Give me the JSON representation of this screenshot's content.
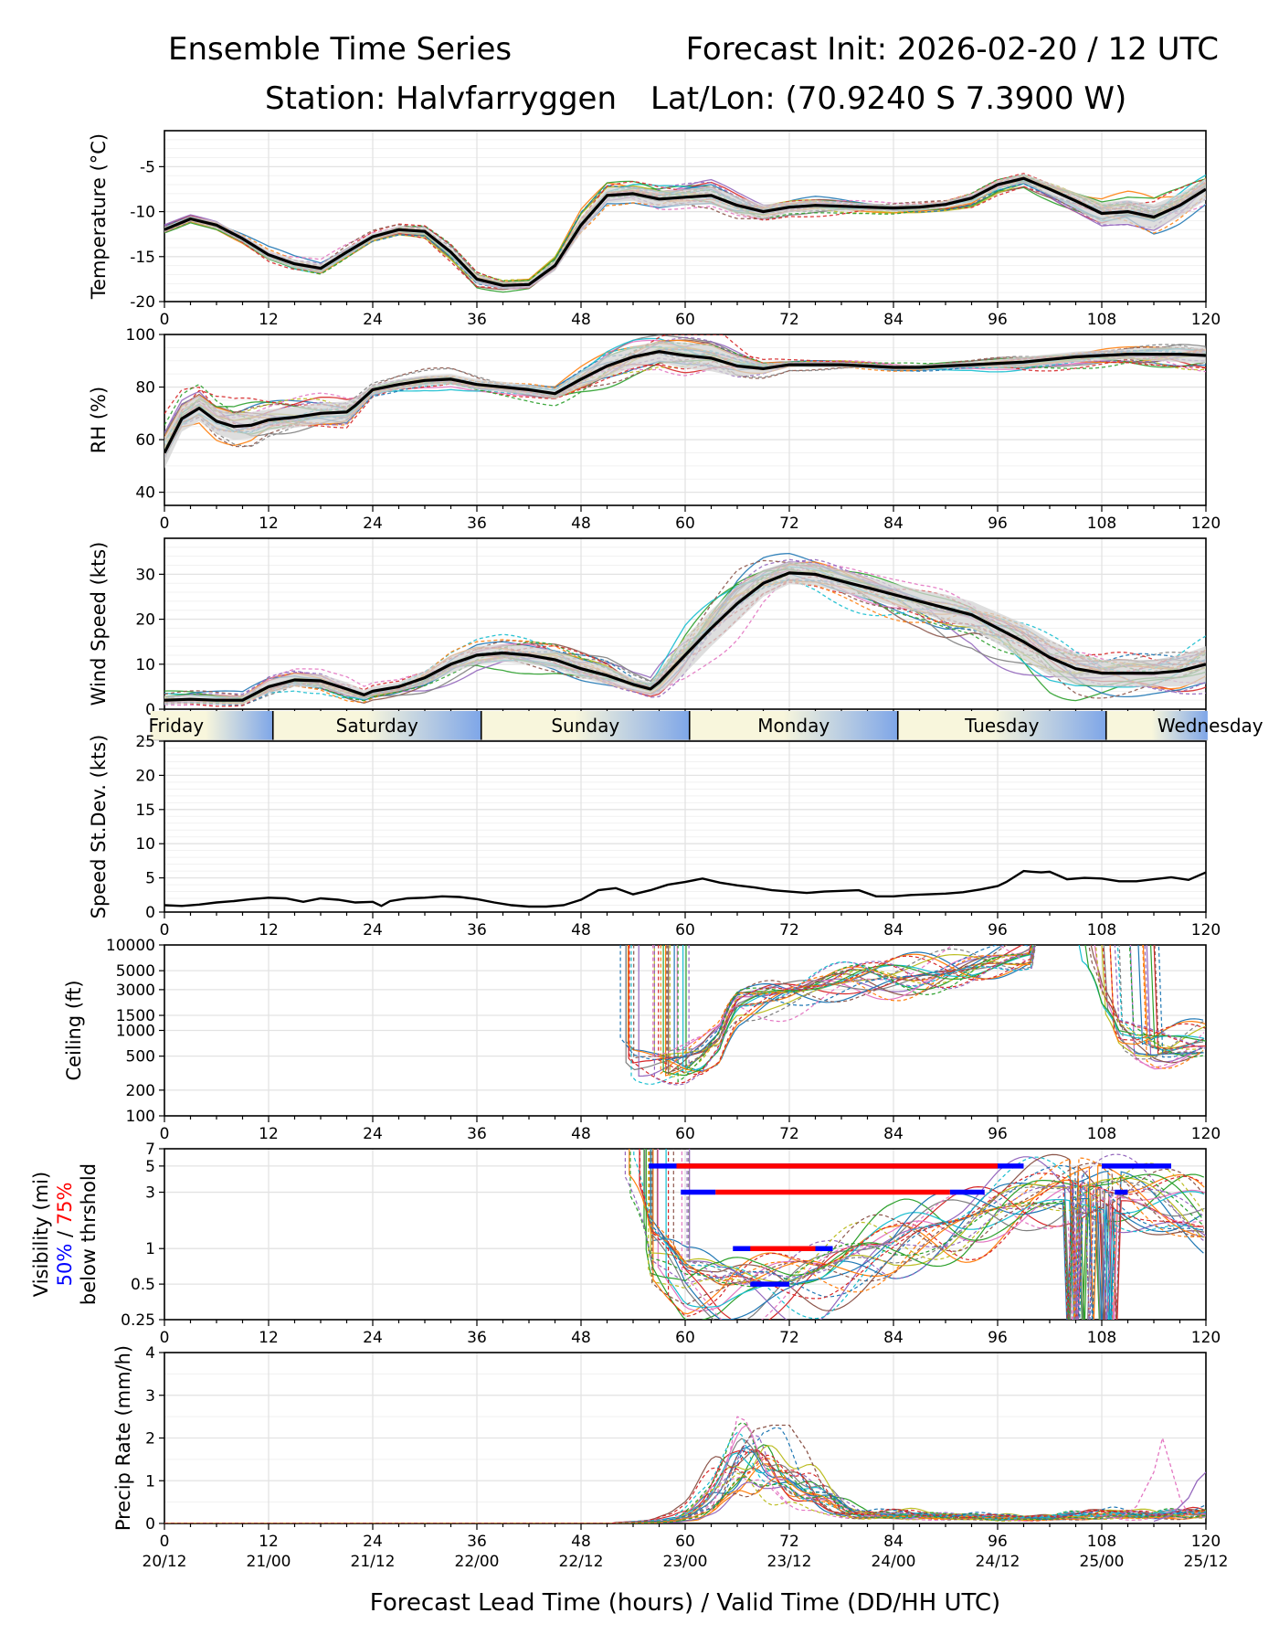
{
  "header": {
    "title_left": "Ensemble Time Series",
    "title_right": "Forecast Init: 2026-02-20 / 12 UTC",
    "station": "Station: Halvfarryggen",
    "latlon": "Lat/Lon: (70.9240 S 7.3900 W)"
  },
  "footer": {
    "xlabel": "Forecast Lead Time (hours) / Valid Time (DD/HH UTC)"
  },
  "colors": {
    "mean": "#000000",
    "spread": "#d3d3d3",
    "grid": "#e3e3e3",
    "p50": "#0000ff",
    "p75": "#ff0000",
    "members": [
      "#1f77b4",
      "#ff7f0e",
      "#2ca02c",
      "#d62728",
      "#9467bd",
      "#8c564b",
      "#e377c2",
      "#7f7f7f",
      "#bcbd22",
      "#17becf"
    ],
    "day_blue": "#7ea6e8",
    "day_cream": "#f8f6dc"
  },
  "chart_data": [
    {
      "type": "line",
      "id": "temperature",
      "ylabel": "Temperature (°C)",
      "xlim": [
        0,
        120
      ],
      "ylim": [
        -20,
        -1
      ],
      "yticks": [
        -20,
        -15,
        -10,
        -5
      ],
      "xticks": [
        0,
        12,
        24,
        36,
        48,
        60,
        72,
        84,
        96,
        108,
        120
      ],
      "mean": {
        "x": [
          0,
          3,
          6,
          9,
          12,
          15,
          18,
          21,
          24,
          27,
          30,
          33,
          36,
          39,
          42,
          45,
          48,
          51,
          54,
          57,
          60,
          63,
          66,
          69,
          72,
          75,
          78,
          81,
          84,
          87,
          90,
          93,
          96,
          99,
          102,
          105,
          108,
          111,
          114,
          117,
          120
        ],
        "y": [
          -12,
          -10.8,
          -11.5,
          -13,
          -14.8,
          -15.8,
          -16.3,
          -14.5,
          -12.8,
          -12,
          -12.2,
          -14.5,
          -17.5,
          -18.2,
          -18.1,
          -16,
          -11.5,
          -8.2,
          -8,
          -8.6,
          -8.4,
          -8.2,
          -9.3,
          -10,
          -9.5,
          -9.3,
          -9.4,
          -9.5,
          -9.6,
          -9.5,
          -9.2,
          -8.5,
          -7,
          -6.3,
          -7.5,
          -8.8,
          -10.2,
          -10,
          -10.6,
          -9.3,
          -7.5
        ]
      },
      "spread_width": [
        0.3,
        0.3,
        0.4,
        0.4,
        0.5,
        0.5,
        0.5,
        0.5,
        0.4,
        0.4,
        0.4,
        0.5,
        0.5,
        0.4,
        0.4,
        0.6,
        0.9,
        0.8,
        0.8,
        0.9,
        0.9,
        1,
        1,
        0.8,
        0.6,
        0.6,
        0.5,
        0.4,
        0.4,
        0.4,
        0.4,
        0.5,
        0.5,
        0.5,
        0.7,
        0.9,
        1.2,
        1.3,
        1.4,
        1.3,
        1.2
      ]
    },
    {
      "type": "line",
      "id": "rh",
      "ylabel": "RH (%)",
      "xlim": [
        0,
        120
      ],
      "ylim": [
        35,
        100
      ],
      "yticks": [
        40,
        60,
        80,
        100
      ],
      "xticks": [
        0,
        12,
        24,
        36,
        48,
        60,
        72,
        84,
        96,
        108,
        120
      ],
      "mean": {
        "x": [
          0,
          2,
          4,
          6,
          8,
          10,
          12,
          15,
          18,
          21,
          22,
          24,
          27,
          30,
          33,
          36,
          39,
          42,
          45,
          48,
          51,
          54,
          57,
          60,
          63,
          66,
          69,
          72,
          75,
          78,
          81,
          84,
          87,
          90,
          93,
          96,
          99,
          102,
          105,
          108,
          111,
          114,
          117,
          120
        ],
        "y": [
          55,
          68,
          72,
          67,
          65,
          65.5,
          67.5,
          68.5,
          70,
          70.5,
          73,
          79,
          81,
          82.5,
          83,
          81,
          80,
          79,
          77.5,
          83,
          88,
          91.5,
          93.5,
          92,
          91,
          88,
          87,
          88.5,
          88.5,
          88.5,
          88,
          87.5,
          87.5,
          88,
          88.5,
          89,
          89.5,
          90.5,
          91.5,
          92,
          92.5,
          92.5,
          92.5,
          92
        ]
      },
      "spread_width": [
        6,
        5,
        5,
        5,
        5,
        5,
        4,
        4,
        4,
        4,
        3,
        2,
        2,
        2,
        2,
        2,
        2,
        2,
        2,
        3,
        4,
        4,
        4,
        5,
        5,
        4,
        2,
        1,
        1,
        1,
        1,
        1,
        1,
        1,
        1,
        1.5,
        2,
        2,
        2,
        2,
        2,
        2.5,
        3,
        3
      ]
    },
    {
      "type": "line",
      "id": "wind",
      "ylabel": "Wind Speed (kts)",
      "xlim": [
        0,
        120
      ],
      "ylim": [
        0,
        38
      ],
      "yticks": [
        0,
        10,
        20,
        30
      ],
      "xticks": [
        0,
        12,
        24,
        36,
        48,
        60,
        72,
        84,
        96,
        108,
        120
      ],
      "mean": {
        "x": [
          0,
          3,
          6,
          9,
          12,
          15,
          18,
          21,
          23,
          24,
          27,
          30,
          33,
          36,
          39,
          42,
          45,
          48,
          51,
          54,
          56,
          57,
          60,
          63,
          66,
          69,
          72,
          75,
          78,
          81,
          84,
          87,
          90,
          93,
          96,
          99,
          102,
          105,
          108,
          111,
          114,
          117,
          120
        ],
        "y": [
          2,
          2.2,
          2,
          2,
          5,
          6.5,
          6.3,
          4.5,
          3.2,
          4,
          5,
          7,
          10,
          12,
          12.5,
          12,
          11,
          9,
          7.5,
          5.5,
          4.5,
          6,
          12,
          18,
          23.5,
          28,
          30.3,
          30,
          28.5,
          27,
          25.5,
          24,
          22.5,
          21,
          18,
          15,
          11.5,
          9,
          8,
          8,
          8,
          8.5,
          10
        ]
      },
      "spread_width": [
        1,
        1,
        1,
        1,
        1.5,
        1.5,
        1.5,
        1.5,
        1,
        1,
        1,
        1.5,
        2,
        2,
        2,
        2,
        2,
        2,
        2,
        1.5,
        1.5,
        2.5,
        4,
        4,
        4,
        3,
        2.5,
        2.5,
        2.5,
        2.5,
        2.5,
        2.5,
        3,
        3,
        3.5,
        4,
        4,
        3.5,
        3,
        3,
        3,
        3.5,
        4
      ]
    },
    {
      "type": "line",
      "id": "speed_sd",
      "ylabel": "Speed St.Dev. (kts)",
      "xlim": [
        0,
        120
      ],
      "ylim": [
        0,
        25
      ],
      "yticks": [
        0,
        5,
        10,
        15,
        20,
        25
      ],
      "xticks": [
        0,
        12,
        24,
        36,
        48,
        60,
        72,
        84,
        96,
        108,
        120
      ],
      "series": [
        {
          "name": "Speed St.Dev.",
          "x": [
            0,
            2,
            4,
            6,
            8,
            10,
            12,
            14,
            16,
            18,
            20,
            22,
            24,
            25,
            26,
            28,
            30,
            32,
            34,
            36,
            38,
            40,
            42,
            44,
            46,
            48,
            50,
            52,
            54,
            56,
            58,
            60,
            62,
            64,
            66,
            68,
            70,
            72,
            74,
            76,
            78,
            80,
            82,
            84,
            86,
            88,
            90,
            92,
            94,
            96,
            97,
            98,
            99,
            100,
            101,
            102,
            104,
            106,
            108,
            110,
            112,
            114,
            116,
            118,
            120
          ],
          "y": [
            1,
            0.9,
            1.1,
            1.4,
            1.6,
            1.9,
            2.1,
            2,
            1.5,
            2,
            1.8,
            1.4,
            1.5,
            0.9,
            1.6,
            2,
            2.1,
            2.3,
            2.2,
            1.9,
            1.4,
            1,
            0.8,
            0.8,
            1,
            1.8,
            3.2,
            3.5,
            2.6,
            3.2,
            4,
            4.4,
            4.9,
            4.3,
            3.9,
            3.6,
            3.2,
            3,
            2.8,
            3,
            3.1,
            3.2,
            2.3,
            2.3,
            2.5,
            2.6,
            2.7,
            2.9,
            3.3,
            3.8,
            4.4,
            5.2,
            6,
            5.9,
            5.8,
            5.9,
            4.8,
            5,
            4.9,
            4.5,
            4.5,
            4.8,
            5.1,
            4.7,
            5.8
          ]
        }
      ]
    },
    {
      "type": "line",
      "id": "ceiling",
      "ylabel": "Ceiling (ft)",
      "yscale": "log",
      "xlim": [
        0,
        120
      ],
      "ylim": [
        100,
        10000
      ],
      "yticks": [
        100,
        200,
        500,
        1000,
        1500,
        3000,
        5000,
        10000
      ],
      "ytick_labels": [
        "100",
        "200",
        "500",
        "1000",
        "1500",
        "3000",
        "5000",
        "10000"
      ],
      "xticks": [
        0,
        12,
        24,
        36,
        48,
        60,
        72,
        84,
        96,
        108,
        120
      ],
      "envelope": {
        "x": [
          52.5,
          54,
          56,
          58,
          60,
          62,
          64,
          66,
          68,
          70,
          72,
          74,
          76,
          78,
          80,
          82,
          84,
          86,
          88,
          90,
          92,
          94,
          96,
          98,
          100,
          102,
          104,
          106,
          108,
          110,
          112,
          114,
          116,
          118,
          120
        ],
        "y": [
          700,
          450,
          420,
          430,
          460,
          550,
          800,
          2000,
          2200,
          2400,
          2500,
          2700,
          3000,
          3400,
          3800,
          4000,
          4300,
          4600,
          5000,
          5500,
          6000,
          6500,
          7000,
          7500,
          8000,
          8500,
          8000,
          7000,
          2000,
          800,
          600,
          550,
          600,
          700,
          800
        ]
      }
    },
    {
      "type": "line",
      "id": "visibility",
      "ylabel": "Visibility (mi)",
      "ylabel_p50": "50%",
      "ylabel_sep": "/",
      "ylabel_p75": "75%",
      "ylabel2": "below thrshold",
      "yscale": "log",
      "xlim": [
        0,
        120
      ],
      "ylim": [
        0.25,
        7
      ],
      "yticks": [
        0.25,
        0.5,
        1,
        3,
        5,
        7
      ],
      "ytick_labels": [
        "0.25",
        "0.5",
        "1",
        "3",
        "5",
        "7"
      ],
      "xticks": [
        0,
        12,
        24,
        36,
        48,
        60,
        72,
        84,
        96,
        108,
        120
      ],
      "threshold_bars": [
        {
          "level": 5,
          "p50": [
            [
              55.8,
              99
            ]
          ],
          "p75": [
            [
              59,
              96
            ]
          ]
        },
        {
          "level": 3,
          "p50": [
            [
              59.5,
              63.5
            ],
            [
              90.5,
              94.5
            ]
          ],
          "p75": [
            [
              63.5,
              90.5
            ]
          ]
        },
        {
          "level": 1,
          "p50": [
            [
              65.5,
              77
            ]
          ],
          "p75": [
            [
              67.5,
              75
            ]
          ]
        },
        {
          "level": 0.5,
          "p50": [
            [
              67.5,
              72
            ]
          ],
          "p75": []
        },
        {
          "level": 5,
          "p50": [
            [
              108,
              116
            ]
          ],
          "p75": []
        },
        {
          "level": 3,
          "p50": [
            [
              109.5,
              111
            ]
          ],
          "p75": []
        }
      ]
    },
    {
      "type": "line",
      "id": "precip",
      "ylabel": "Precip Rate (mm/h)",
      "xlim": [
        0,
        120
      ],
      "ylim": [
        0,
        4
      ],
      "yticks": [
        0,
        1,
        2,
        3,
        4
      ],
      "xticks": [
        0,
        12,
        24,
        36,
        48,
        60,
        72,
        84,
        96,
        108,
        120
      ],
      "xtick_labels2": [
        "20/12",
        "21/00",
        "21/12",
        "22/00",
        "22/12",
        "23/00",
        "23/12",
        "24/00",
        "24/12",
        "25/00",
        "25/12"
      ],
      "envelope": {
        "x": [
          52,
          56,
          58,
          60,
          62,
          64,
          66,
          68,
          70,
          72,
          74,
          76,
          78,
          80,
          82,
          84,
          86,
          88,
          90,
          92,
          94,
          96,
          98,
          100,
          102,
          104,
          106,
          108,
          110,
          112,
          114,
          116,
          118,
          120
        ],
        "y": [
          0,
          0.05,
          0.1,
          0.2,
          0.5,
          1.0,
          1.6,
          2.0,
          1.7,
          1.3,
          1.0,
          0.7,
          0.4,
          0.25,
          0.25,
          0.3,
          0.25,
          0.2,
          0.2,
          0.2,
          0.2,
          0.2,
          0.15,
          0.15,
          0.15,
          0.2,
          0.25,
          0.3,
          0.3,
          0.25,
          0.2,
          0.25,
          0.3,
          0.35
        ]
      },
      "outliers": [
        {
          "x": [
            63,
            65,
            66,
            67,
            69,
            70,
            72
          ],
          "y": [
            0.3,
            1.5,
            2.5,
            2.4,
            1.4,
            0.8,
            0.4
          ]
        },
        {
          "x": [
            64,
            66,
            68,
            70,
            72,
            74,
            76,
            78,
            80
          ],
          "y": [
            0.5,
            1.6,
            2.2,
            2.3,
            2.3,
            1.7,
            0.8,
            0.3,
            0.1
          ]
        },
        {
          "x": [
            110,
            112,
            114,
            115,
            116,
            117,
            118
          ],
          "y": [
            0.1,
            0.4,
            1.2,
            2.0,
            1.3,
            0.6,
            0.2
          ]
        },
        {
          "x": [
            114,
            116,
            118,
            119,
            120
          ],
          "y": [
            0.05,
            0.2,
            0.6,
            1.0,
            1.2
          ]
        }
      ]
    }
  ],
  "day_strip": {
    "labels": [
      "Friday",
      "Saturday",
      "Sunday",
      "Monday",
      "Tuesday",
      "Wednesday"
    ],
    "boundaries_h": [
      12.5,
      36.5,
      60.5,
      84.5,
      108.5
    ]
  }
}
